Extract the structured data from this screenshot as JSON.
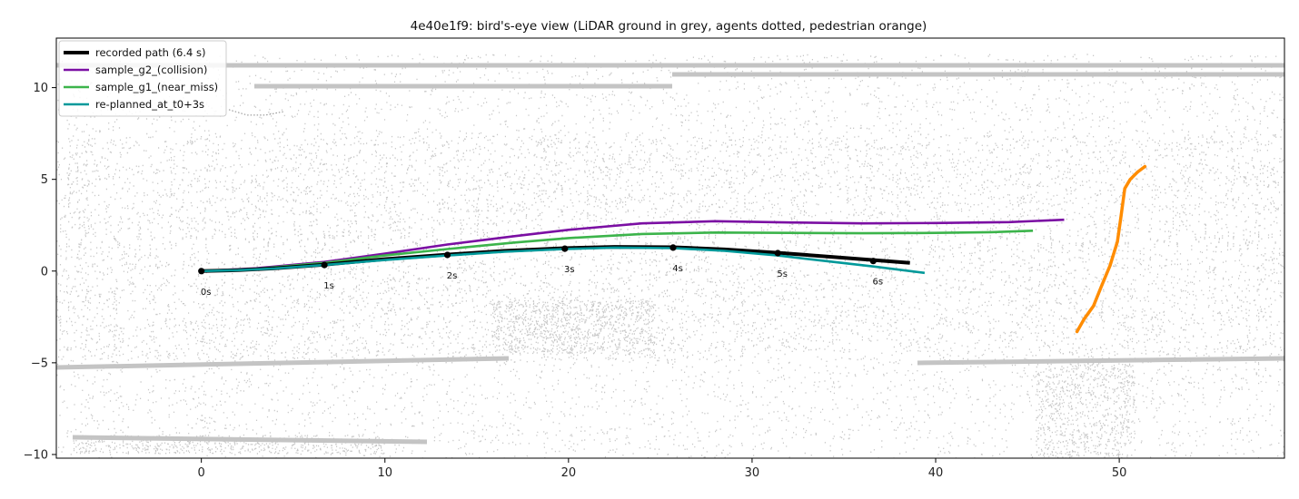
{
  "chart_data": {
    "type": "line",
    "title": "4e40e1f9: bird's-eye view (LiDAR ground in grey, agents dotted, pedestrian orange)",
    "xlabel": "",
    "ylabel": "",
    "xlim": [
      -7.9,
      59.0
    ],
    "ylim": [
      -10.2,
      12.7
    ],
    "xticks": [
      0,
      10,
      20,
      30,
      40,
      50
    ],
    "yticks": [
      -10,
      -5,
      0,
      5,
      10
    ],
    "xtick_labels": [
      "0",
      "10",
      "20",
      "30",
      "40",
      "50"
    ],
    "ytick_labels": [
      "−10",
      "−5",
      "0",
      "5",
      "10"
    ],
    "grid": false,
    "legend_position": "top-left",
    "background": "LiDAR ground points (grey)",
    "series": [
      {
        "name": "recorded path (6.4 s)",
        "color": "#000000",
        "x": [
          0,
          2,
          4,
          6.7,
          10,
          13.4,
          16.5,
          19.8,
          22.5,
          25.7,
          28.5,
          31.4,
          34,
          36.6,
          38.6
        ],
        "y": [
          0,
          0.05,
          0.15,
          0.35,
          0.65,
          0.9,
          1.1,
          1.25,
          1.32,
          1.3,
          1.18,
          1.0,
          0.8,
          0.6,
          0.45
        ]
      },
      {
        "name": "sample_g2_(collision)",
        "color": "#7b0fa3",
        "x": [
          0,
          3,
          6.7,
          10,
          13.4,
          17,
          20,
          24,
          28,
          32,
          36,
          40,
          44,
          47
        ],
        "y": [
          0,
          0.15,
          0.5,
          0.95,
          1.45,
          1.9,
          2.25,
          2.6,
          2.72,
          2.65,
          2.6,
          2.62,
          2.67,
          2.8
        ]
      },
      {
        "name": "sample_g1_(near_miss)",
        "color": "#3cb44b",
        "x": [
          0,
          3,
          6.7,
          10,
          13.4,
          17,
          20,
          24,
          28,
          32,
          36,
          40,
          43,
          45.3
        ],
        "y": [
          0,
          0.12,
          0.45,
          0.85,
          1.2,
          1.55,
          1.8,
          2.02,
          2.1,
          2.08,
          2.06,
          2.08,
          2.12,
          2.2
        ]
      },
      {
        "name": "re-planned_at_t0+3s",
        "color": "#00999a",
        "x": [
          0,
          2,
          4,
          6.7,
          10,
          13.4,
          16.5,
          19.8,
          22.5,
          25.7,
          28.5,
          31.4,
          34,
          36.6,
          39.4
        ],
        "y": [
          0,
          0.05,
          0.14,
          0.33,
          0.6,
          0.85,
          1.05,
          1.2,
          1.28,
          1.25,
          1.1,
          0.85,
          0.55,
          0.25,
          -0.1
        ]
      }
    ],
    "pedestrian": {
      "name": "pedestrian",
      "color": "#ff8c00",
      "x": [
        47.7,
        48.1,
        48.6,
        49.0,
        49.5,
        49.9,
        50.1,
        50.3,
        50.6,
        51.0,
        51.4
      ],
      "y": [
        -3.3,
        -2.6,
        -1.9,
        -0.9,
        0.3,
        1.6,
        3.0,
        4.5,
        5.0,
        5.4,
        5.7
      ]
    },
    "other_agent": {
      "x": [
        1.5,
        2.5,
        3.5,
        4.5
      ],
      "y": [
        8.8,
        8.5,
        8.5,
        8.7
      ]
    },
    "time_markers": [
      {
        "label": "0s",
        "x": 0.0,
        "y": 0.0
      },
      {
        "label": "1s",
        "x": 6.7,
        "y": 0.33
      },
      {
        "label": "2s",
        "x": 13.4,
        "y": 0.88
      },
      {
        "label": "3s",
        "x": 19.8,
        "y": 1.22
      },
      {
        "label": "4s",
        "x": 25.7,
        "y": 1.28
      },
      {
        "label": "5s",
        "x": 31.4,
        "y": 0.98
      },
      {
        "label": "6s",
        "x": 36.6,
        "y": 0.55
      }
    ]
  }
}
